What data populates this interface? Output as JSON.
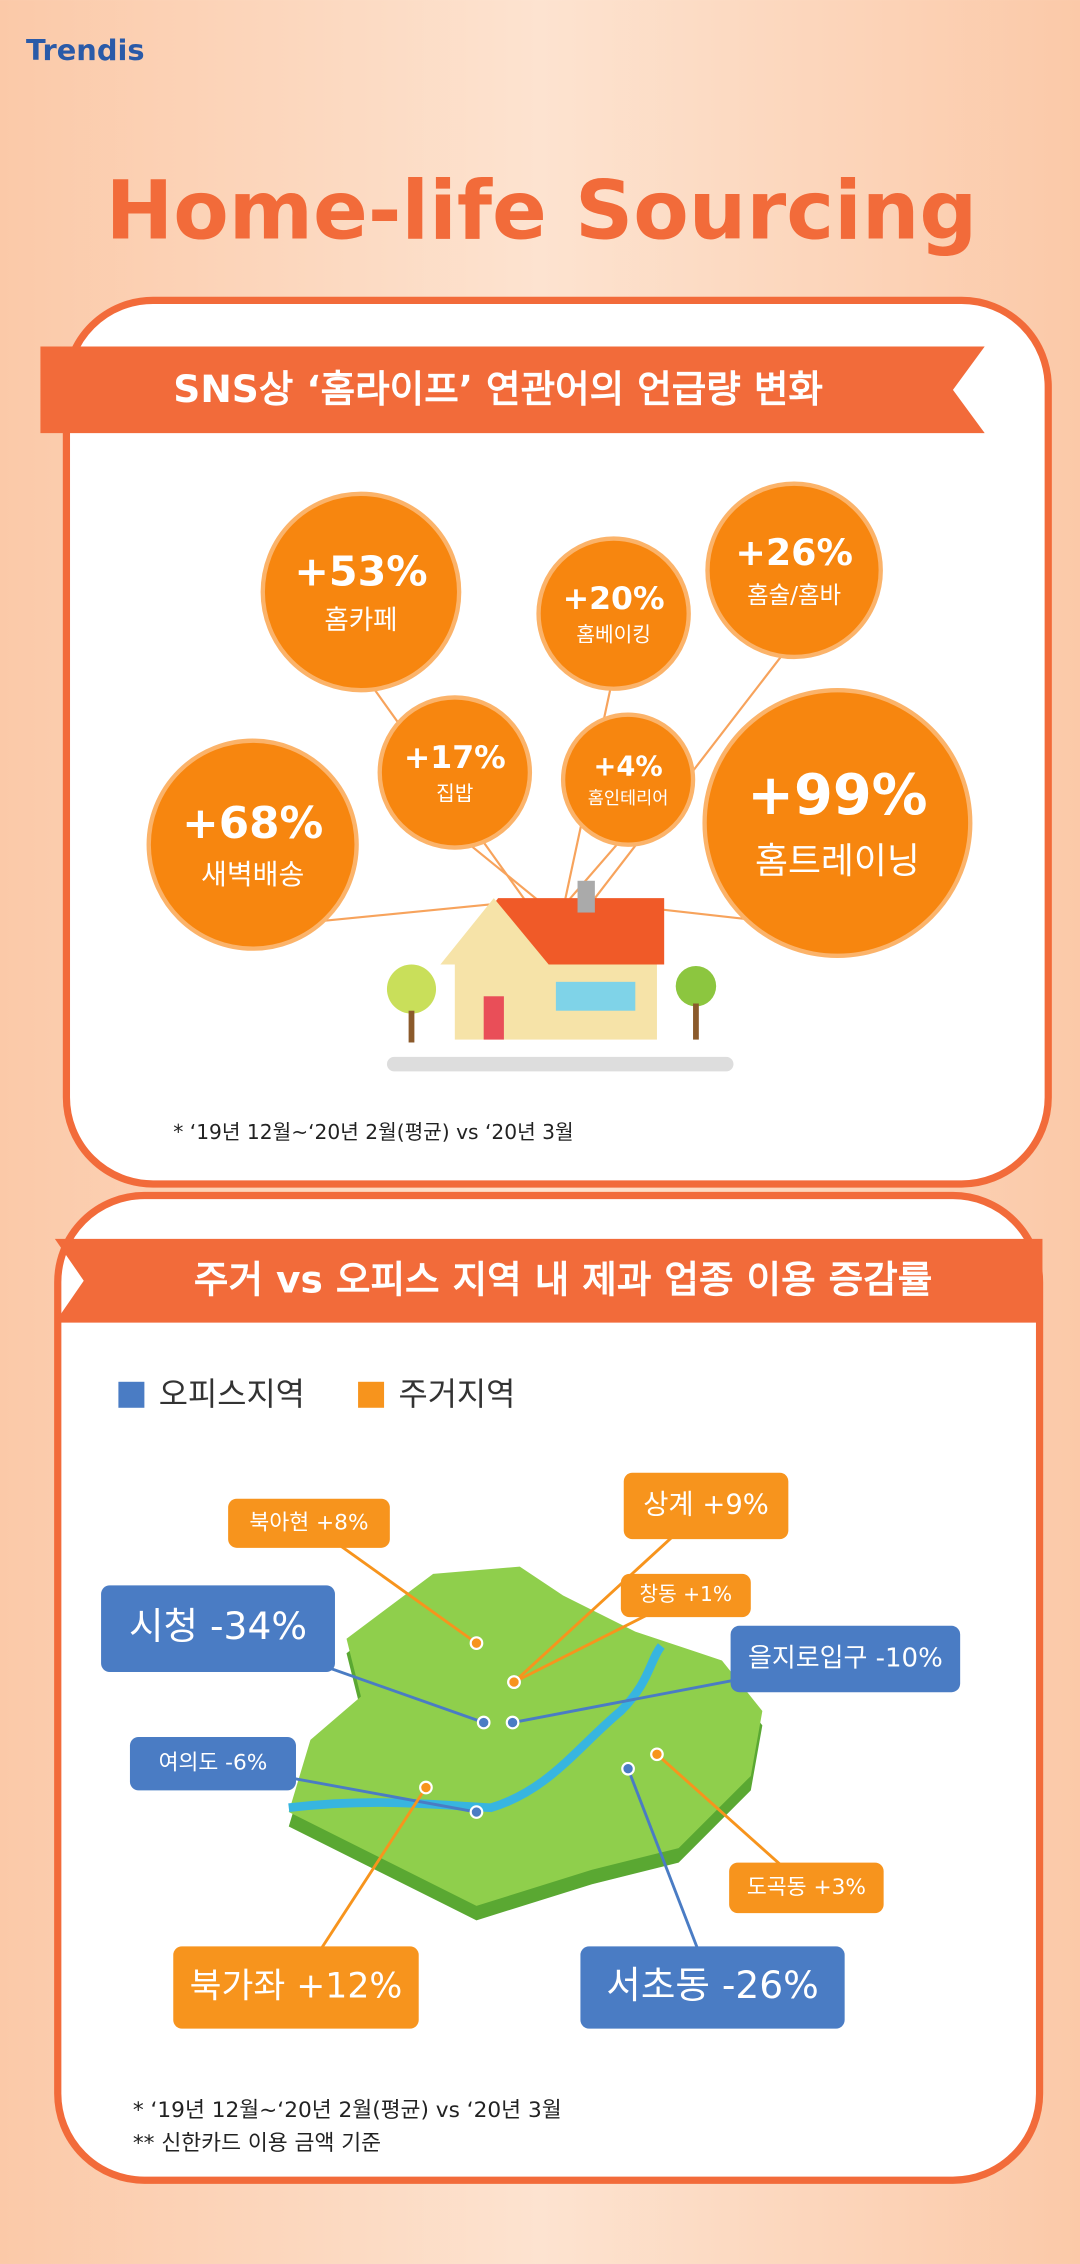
{
  "logo": "Trendis",
  "title": "Home-life Sourcing",
  "section1": {
    "heading": "SNS상 ‘홈라이프’ 연관어의 언급량 변화",
    "bubbles": [
      {
        "change": "+53%",
        "label": "홈카페"
      },
      {
        "change": "+20%",
        "label": "홈베이킹"
      },
      {
        "change": "+26%",
        "label": "홈술/홈바"
      },
      {
        "change": "+17%",
        "label": "집밥"
      },
      {
        "change": "+4%",
        "label": "홈인테리어"
      },
      {
        "change": "+68%",
        "label": "새벽배송"
      },
      {
        "change": "+99%",
        "label": "홈트레이닝"
      }
    ],
    "footnote": "* ‘19년 12월~‘20년 2월(평균) vs ‘20년 3월"
  },
  "section2": {
    "heading": "주거 vs 오피스 지역 내 제과 업종 이용 증감률",
    "legend": [
      {
        "label": "오피스지역",
        "color": "#4a7cc4"
      },
      {
        "label": "주거지역",
        "color": "#f7941d"
      }
    ],
    "regions": [
      {
        "label": "북아현 +8%",
        "legend": 1
      },
      {
        "label": "상계 +9%",
        "legend": 1
      },
      {
        "label": "창동 +1%",
        "legend": 1
      },
      {
        "label": "시청 -34%",
        "legend": 0
      },
      {
        "label": "을지로입구 -10%",
        "legend": 0
      },
      {
        "label": "여의도 -6%",
        "legend": 0
      },
      {
        "label": "도곡동 +3%",
        "legend": 1
      },
      {
        "label": "북가좌 +12%",
        "legend": 1
      },
      {
        "label": "서초동 -26%",
        "legend": 0
      }
    ],
    "footnotes": [
      "* ‘19년 12월~‘20년 2월(평균) vs ‘20년 3월",
      "** 신한카드 이용 금액 기준"
    ]
  }
}
